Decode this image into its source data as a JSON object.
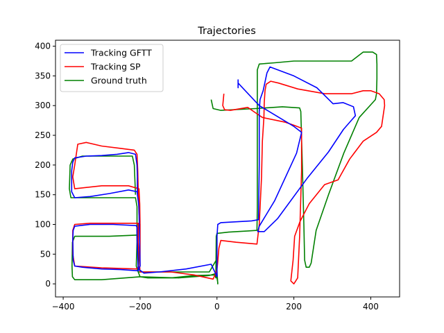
{
  "chart_data": {
    "type": "line",
    "title": "Trajectories",
    "xlabel": "",
    "ylabel": "",
    "xlim": [
      -420,
      475
    ],
    "ylim": [
      -22,
      410
    ],
    "xticks": [
      -400,
      -200,
      0,
      200,
      400
    ],
    "yticks": [
      0,
      50,
      100,
      150,
      200,
      250,
      300,
      350,
      400
    ],
    "grid": false,
    "legend_position": "upper-left",
    "series": [
      {
        "name": "Tracking GFTT",
        "color": "#0000ff",
        "points": [
          [
            55,
            344
          ],
          [
            55,
            330
          ],
          [
            55,
            338
          ],
          [
            110,
            300
          ],
          [
            200,
            265
          ],
          [
            220,
            255
          ],
          [
            207,
            220
          ],
          [
            150,
            140
          ],
          [
            110,
            97
          ],
          [
            106,
            88
          ],
          [
            123,
            88
          ],
          [
            158,
            110
          ],
          [
            235,
            178
          ],
          [
            290,
            222
          ],
          [
            329,
            260
          ],
          [
            360,
            283
          ],
          [
            355,
            298
          ],
          [
            328,
            305
          ],
          [
            302,
            303
          ],
          [
            260,
            330
          ],
          [
            200,
            350
          ],
          [
            138,
            365
          ],
          [
            130,
            355
          ],
          [
            120,
            325
          ],
          [
            112,
            310
          ],
          [
            110,
            290
          ],
          [
            110,
            200
          ],
          [
            108,
            108
          ],
          [
            90,
            106
          ],
          [
            10,
            103
          ],
          [
            2,
            100
          ],
          [
            0,
            80
          ],
          [
            0,
            40
          ],
          [
            0,
            12
          ],
          [
            -15,
            33
          ],
          [
            -80,
            25
          ],
          [
            -150,
            20
          ],
          [
            -190,
            18
          ],
          [
            -205,
            25
          ],
          [
            -208,
            80
          ],
          [
            -208,
            95
          ],
          [
            -210,
            98
          ],
          [
            -270,
            100
          ],
          [
            -330,
            100
          ],
          [
            -370,
            97
          ],
          [
            -374,
            90
          ],
          [
            -375,
            75
          ],
          [
            -374,
            40
          ],
          [
            -370,
            30
          ],
          [
            -350,
            28
          ],
          [
            -300,
            25
          ],
          [
            -250,
            24
          ],
          [
            -205,
            22
          ],
          [
            -200,
            30
          ],
          [
            -203,
            130
          ],
          [
            -208,
            155
          ],
          [
            -230,
            158
          ],
          [
            -280,
            152
          ],
          [
            -330,
            147
          ],
          [
            -370,
            145
          ],
          [
            -378,
            155
          ],
          [
            -378,
            190
          ],
          [
            -375,
            205
          ],
          [
            -370,
            212
          ],
          [
            -340,
            215
          ],
          [
            -300,
            216
          ],
          [
            -260,
            218
          ],
          [
            -230,
            221
          ],
          [
            -212,
            218
          ],
          [
            -208,
            200
          ],
          [
            -207,
            180
          ],
          [
            -207,
            150
          ]
        ]
      },
      {
        "name": "Tracking SP",
        "color": "#ff0000",
        "points": [
          [
            18,
            320
          ],
          [
            15,
            300
          ],
          [
            20,
            293
          ],
          [
            35,
            292
          ],
          [
            80,
            297
          ],
          [
            100,
            288
          ],
          [
            118,
            280
          ],
          [
            178,
            272
          ],
          [
            200,
            267
          ],
          [
            220,
            262
          ],
          [
            220,
            190
          ],
          [
            215,
            80
          ],
          [
            210,
            10
          ],
          [
            200,
            0
          ],
          [
            192,
            5
          ],
          [
            198,
            40
          ],
          [
            202,
            80
          ],
          [
            216,
            105
          ],
          [
            240,
            135
          ],
          [
            280,
            167
          ],
          [
            315,
            175
          ],
          [
            345,
            210
          ],
          [
            380,
            240
          ],
          [
            415,
            255
          ],
          [
            428,
            265
          ],
          [
            436,
            300
          ],
          [
            435,
            310
          ],
          [
            422,
            320
          ],
          [
            400,
            325
          ],
          [
            380,
            325
          ],
          [
            350,
            320
          ],
          [
            280,
            320
          ],
          [
            210,
            328
          ],
          [
            160,
            338
          ],
          [
            140,
            341
          ],
          [
            128,
            336
          ],
          [
            125,
            325
          ],
          [
            123,
            305
          ],
          [
            122,
            280
          ],
          [
            120,
            260
          ],
          [
            118,
            240
          ],
          [
            116,
            180
          ],
          [
            110,
            100
          ],
          [
            104,
            67
          ],
          [
            50,
            70
          ],
          [
            10,
            73
          ],
          [
            5,
            60
          ],
          [
            2,
            37
          ],
          [
            0,
            25
          ],
          [
            -3,
            18
          ],
          [
            -10,
            8
          ],
          [
            -60,
            15
          ],
          [
            -120,
            20
          ],
          [
            -170,
            20
          ],
          [
            -200,
            20
          ],
          [
            -205,
            70
          ],
          [
            -205,
            102
          ],
          [
            -270,
            102
          ],
          [
            -330,
            102
          ],
          [
            -370,
            100
          ],
          [
            -375,
            90
          ],
          [
            -375,
            50
          ],
          [
            -370,
            30
          ],
          [
            -300,
            27
          ],
          [
            -210,
            25
          ],
          [
            -200,
            30
          ],
          [
            -200,
            100
          ],
          [
            -201,
            135
          ],
          [
            -203,
            160
          ],
          [
            -230,
            165
          ],
          [
            -300,
            165
          ],
          [
            -370,
            160
          ],
          [
            -375,
            180
          ],
          [
            -370,
            200
          ],
          [
            -362,
            235
          ],
          [
            -340,
            238
          ],
          [
            -300,
            232
          ],
          [
            -250,
            228
          ],
          [
            -215,
            225
          ],
          [
            -208,
            218
          ],
          [
            -206,
            190
          ],
          [
            -205,
            160
          ],
          [
            -203,
            120
          ],
          [
            -200,
            102
          ]
        ]
      },
      {
        "name": "Ground truth",
        "color": "#008000",
        "points": [
          [
            -15,
            310
          ],
          [
            -10,
            295
          ],
          [
            10,
            292
          ],
          [
            100,
            295
          ],
          [
            170,
            298
          ],
          [
            215,
            296
          ],
          [
            218,
            290
          ],
          [
            222,
            200
          ],
          [
            226,
            100
          ],
          [
            228,
            40
          ],
          [
            232,
            28
          ],
          [
            240,
            28
          ],
          [
            245,
            35
          ],
          [
            258,
            90
          ],
          [
            290,
            150
          ],
          [
            330,
            220
          ],
          [
            370,
            280
          ],
          [
            412,
            310
          ],
          [
            415,
            320
          ],
          [
            416,
            345
          ],
          [
            416,
            370
          ],
          [
            415,
            386
          ],
          [
            405,
            390
          ],
          [
            380,
            390
          ],
          [
            350,
            375
          ],
          [
            310,
            375
          ],
          [
            200,
            375
          ],
          [
            150,
            372
          ],
          [
            110,
            370
          ],
          [
            105,
            360
          ],
          [
            105,
            300
          ],
          [
            105,
            200
          ],
          [
            105,
            130
          ],
          [
            104,
            90
          ],
          [
            80,
            89
          ],
          [
            30,
            87
          ],
          [
            0,
            85
          ],
          [
            -2,
            80
          ],
          [
            -3,
            10
          ],
          [
            -5,
            15
          ],
          [
            -60,
            14
          ],
          [
            -120,
            10
          ],
          [
            -180,
            10
          ],
          [
            -200,
            12
          ],
          [
            -205,
            20
          ],
          [
            -205,
            50
          ],
          [
            -206,
            82
          ],
          [
            -210,
            82
          ],
          [
            -280,
            80
          ],
          [
            -340,
            80
          ],
          [
            -370,
            80
          ],
          [
            -376,
            70
          ],
          [
            -377,
            30
          ],
          [
            -376,
            12
          ],
          [
            -370,
            7
          ],
          [
            -300,
            7
          ],
          [
            -200,
            12
          ],
          [
            -100,
            10
          ],
          [
            -20,
            14
          ],
          [
            -5,
            17
          ],
          [
            0,
            10
          ],
          [
            2,
            2
          ],
          [
            2,
            0
          ],
          [
            0,
            20
          ],
          [
            -2,
            40
          ],
          [
            -20,
            20
          ],
          [
            -205,
            20
          ],
          [
            -210,
            30
          ],
          [
            -208,
            70
          ],
          [
            -208,
            130
          ],
          [
            -212,
            145
          ],
          [
            -260,
            145
          ],
          [
            -320,
            145
          ],
          [
            -380,
            145
          ],
          [
            -384,
            160
          ],
          [
            -382,
            200
          ],
          [
            -375,
            210
          ],
          [
            -350,
            215
          ],
          [
            -300,
            215
          ],
          [
            -250,
            215
          ],
          [
            -220,
            215
          ],
          [
            -215,
            200
          ],
          [
            -212,
            150
          ]
        ]
      }
    ]
  }
}
